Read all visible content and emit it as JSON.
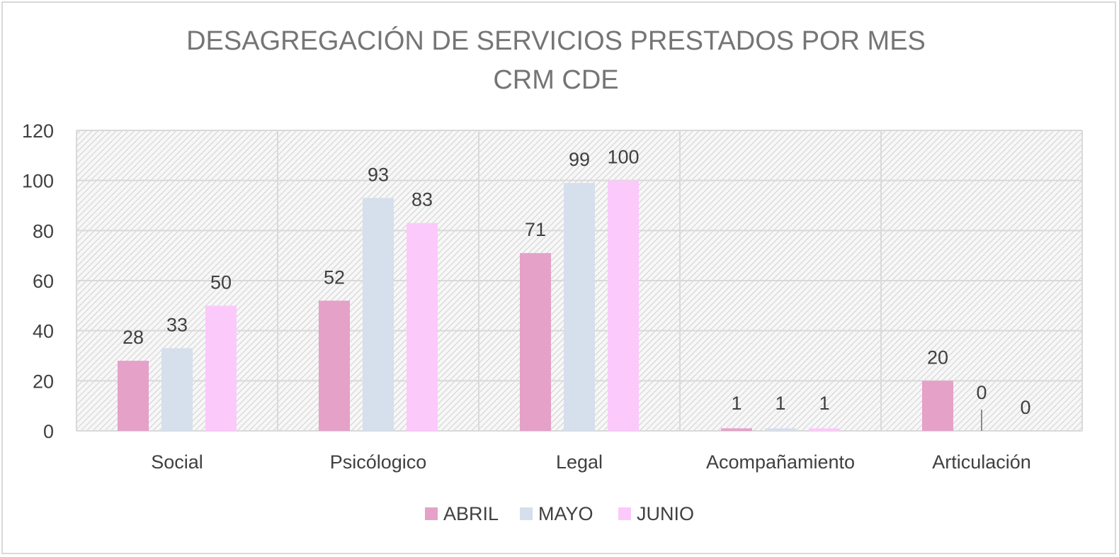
{
  "chart_data": {
    "type": "bar",
    "title_lines": [
      "DESAGREGACIÓN DE SERVICIOS PRESTADOS POR  MES",
      "CRM CDE"
    ],
    "categories": [
      "Social",
      "Psicólogico",
      "Legal",
      "Acompañamiento",
      "Articulación"
    ],
    "series": [
      {
        "name": "ABRIL",
        "values": [
          28,
          52,
          71,
          1,
          20
        ],
        "color": "#e5a1c8"
      },
      {
        "name": "MAYO",
        "values": [
          33,
          93,
          99,
          1,
          0
        ],
        "color": "#d6dfec"
      },
      {
        "name": "JUNIO",
        "values": [
          50,
          83,
          100,
          1,
          0
        ],
        "color": "#fcc9fb"
      }
    ],
    "ylim": [
      0,
      120
    ],
    "yticks": [
      "0",
      "20",
      "40",
      "60",
      "80",
      "100",
      "120"
    ],
    "grid": true,
    "plot_background": "diagonal-hatch",
    "legend_position": "bottom",
    "xlabel": "",
    "ylabel": ""
  }
}
